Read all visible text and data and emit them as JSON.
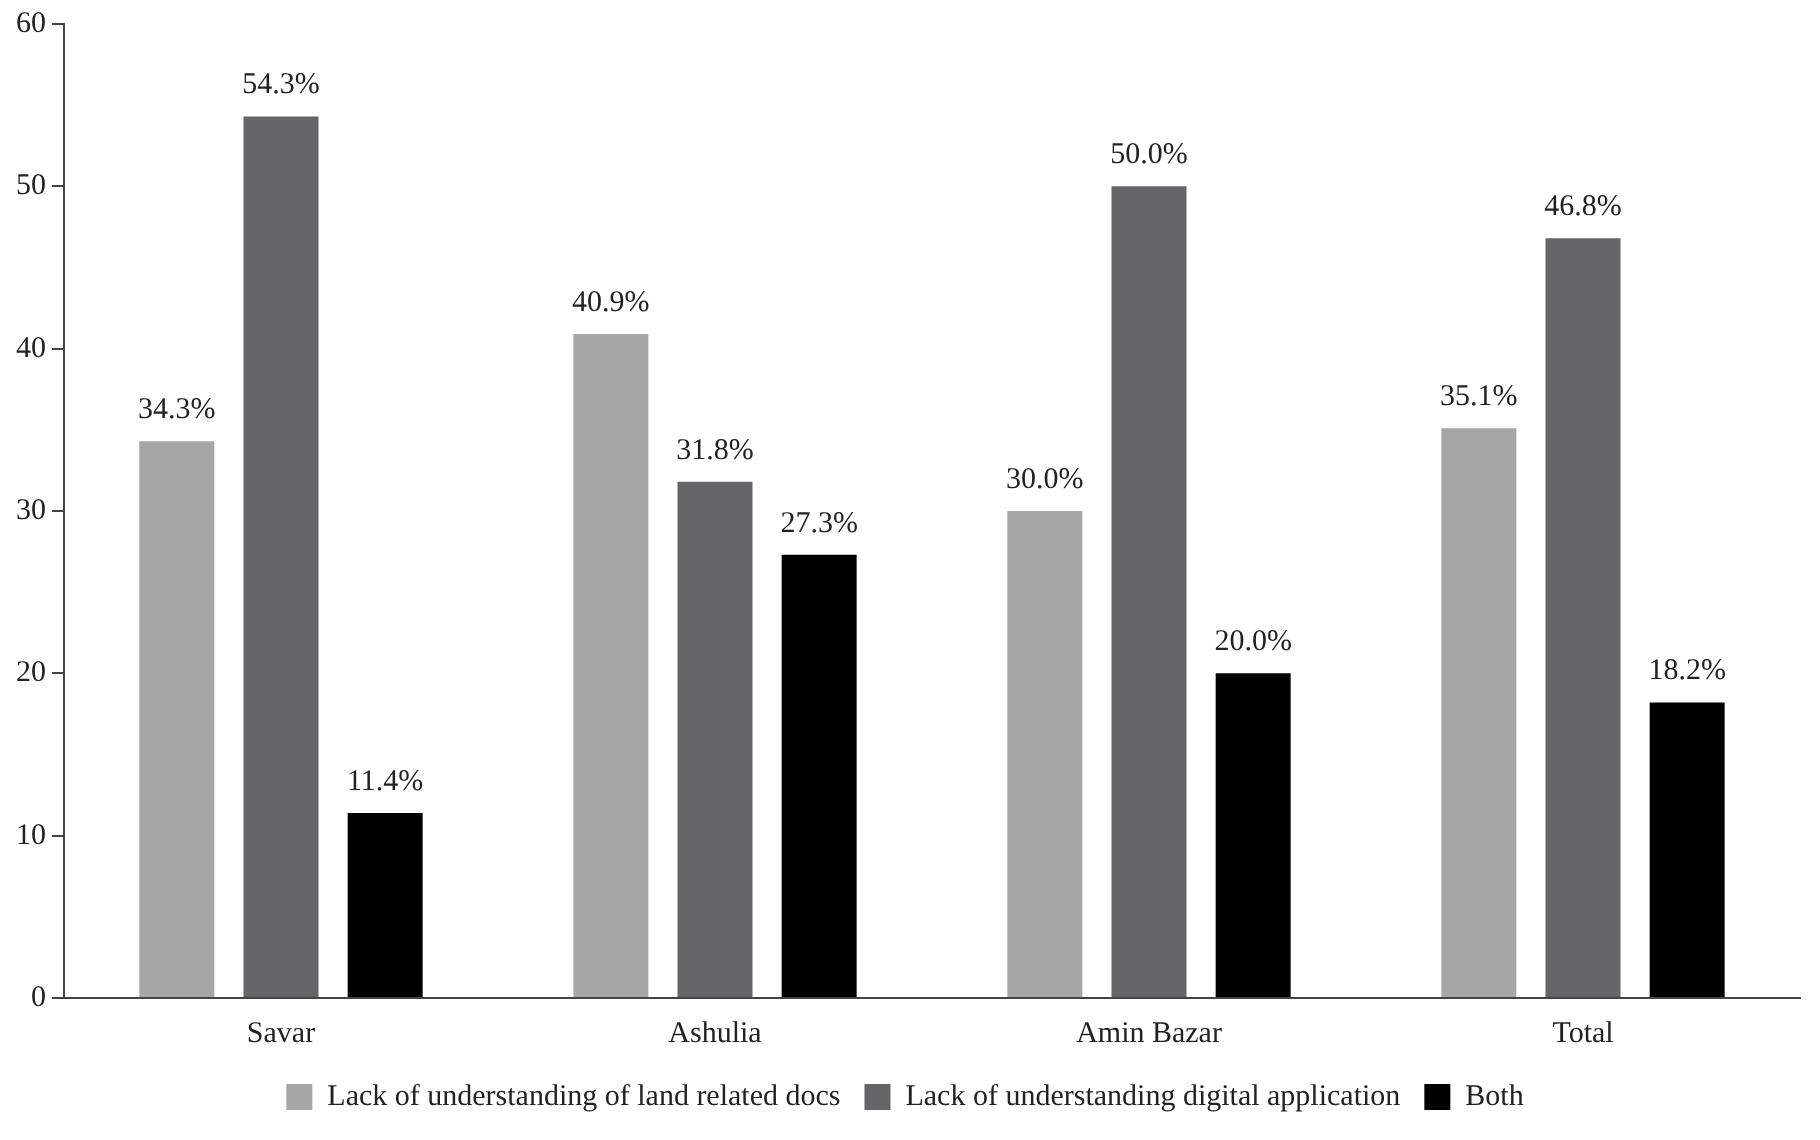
{
  "chart_data": {
    "type": "bar",
    "categories": [
      "Savar",
      "Ashulia",
      "Amin Bazar",
      "Total"
    ],
    "series": [
      {
        "name": "Lack of understanding of land related docs",
        "color": "#a6a6a6",
        "values": [
          34.3,
          40.9,
          30.0,
          35.1
        ],
        "value_labels": [
          "34.3%",
          "40.9%",
          "30.0%",
          "35.1%"
        ]
      },
      {
        "name": "Lack of understanding digital application",
        "color": "#646567",
        "values": [
          54.3,
          31.8,
          50.0,
          46.8
        ],
        "value_labels": [
          "54.3%",
          "31.8%",
          "50.0%",
          "46.8%"
        ]
      },
      {
        "name": "Both",
        "color": "#000000",
        "values": [
          11.4,
          27.3,
          20.0,
          18.2
        ],
        "value_labels": [
          "11.4%",
          "27.3%",
          "20.0%",
          "18.2%"
        ]
      }
    ],
    "ylim": [
      0,
      60
    ],
    "yticks": [
      0,
      10,
      20,
      30,
      40,
      50,
      60
    ],
    "grid": false,
    "legend": "bottom"
  }
}
